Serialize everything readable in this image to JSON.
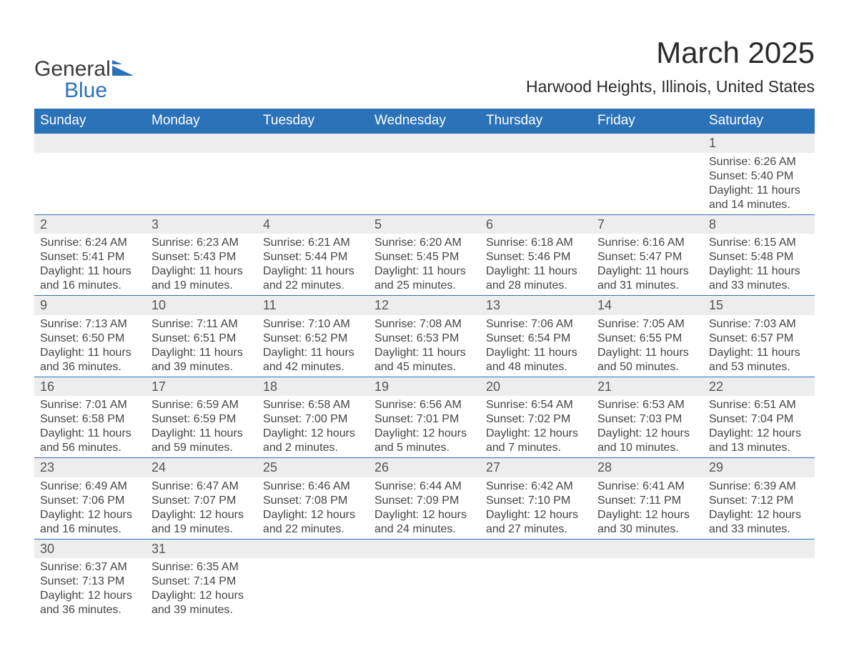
{
  "brand": {
    "name1": "General",
    "name2": "Blue"
  },
  "title": "March 2025",
  "location": "Harwood Heights, Illinois, United States",
  "colors": {
    "header_bg": "#2b72b9",
    "header_fg": "#ffffff",
    "daynum_bg": "#ededed",
    "row_divider": "#2b72b9",
    "text": "#444444",
    "title_text": "#2a2a2a"
  },
  "day_headers": [
    "Sunday",
    "Monday",
    "Tuesday",
    "Wednesday",
    "Thursday",
    "Friday",
    "Saturday"
  ],
  "weeks": [
    [
      null,
      null,
      null,
      null,
      null,
      null,
      {
        "n": "1",
        "sunrise": "Sunrise: 6:26 AM",
        "sunset": "Sunset: 5:40 PM",
        "d1": "Daylight: 11 hours",
        "d2": "and 14 minutes."
      }
    ],
    [
      {
        "n": "2",
        "sunrise": "Sunrise: 6:24 AM",
        "sunset": "Sunset: 5:41 PM",
        "d1": "Daylight: 11 hours",
        "d2": "and 16 minutes."
      },
      {
        "n": "3",
        "sunrise": "Sunrise: 6:23 AM",
        "sunset": "Sunset: 5:43 PM",
        "d1": "Daylight: 11 hours",
        "d2": "and 19 minutes."
      },
      {
        "n": "4",
        "sunrise": "Sunrise: 6:21 AM",
        "sunset": "Sunset: 5:44 PM",
        "d1": "Daylight: 11 hours",
        "d2": "and 22 minutes."
      },
      {
        "n": "5",
        "sunrise": "Sunrise: 6:20 AM",
        "sunset": "Sunset: 5:45 PM",
        "d1": "Daylight: 11 hours",
        "d2": "and 25 minutes."
      },
      {
        "n": "6",
        "sunrise": "Sunrise: 6:18 AM",
        "sunset": "Sunset: 5:46 PM",
        "d1": "Daylight: 11 hours",
        "d2": "and 28 minutes."
      },
      {
        "n": "7",
        "sunrise": "Sunrise: 6:16 AM",
        "sunset": "Sunset: 5:47 PM",
        "d1": "Daylight: 11 hours",
        "d2": "and 31 minutes."
      },
      {
        "n": "8",
        "sunrise": "Sunrise: 6:15 AM",
        "sunset": "Sunset: 5:48 PM",
        "d1": "Daylight: 11 hours",
        "d2": "and 33 minutes."
      }
    ],
    [
      {
        "n": "9",
        "sunrise": "Sunrise: 7:13 AM",
        "sunset": "Sunset: 6:50 PM",
        "d1": "Daylight: 11 hours",
        "d2": "and 36 minutes."
      },
      {
        "n": "10",
        "sunrise": "Sunrise: 7:11 AM",
        "sunset": "Sunset: 6:51 PM",
        "d1": "Daylight: 11 hours",
        "d2": "and 39 minutes."
      },
      {
        "n": "11",
        "sunrise": "Sunrise: 7:10 AM",
        "sunset": "Sunset: 6:52 PM",
        "d1": "Daylight: 11 hours",
        "d2": "and 42 minutes."
      },
      {
        "n": "12",
        "sunrise": "Sunrise: 7:08 AM",
        "sunset": "Sunset: 6:53 PM",
        "d1": "Daylight: 11 hours",
        "d2": "and 45 minutes."
      },
      {
        "n": "13",
        "sunrise": "Sunrise: 7:06 AM",
        "sunset": "Sunset: 6:54 PM",
        "d1": "Daylight: 11 hours",
        "d2": "and 48 minutes."
      },
      {
        "n": "14",
        "sunrise": "Sunrise: 7:05 AM",
        "sunset": "Sunset: 6:55 PM",
        "d1": "Daylight: 11 hours",
        "d2": "and 50 minutes."
      },
      {
        "n": "15",
        "sunrise": "Sunrise: 7:03 AM",
        "sunset": "Sunset: 6:57 PM",
        "d1": "Daylight: 11 hours",
        "d2": "and 53 minutes."
      }
    ],
    [
      {
        "n": "16",
        "sunrise": "Sunrise: 7:01 AM",
        "sunset": "Sunset: 6:58 PM",
        "d1": "Daylight: 11 hours",
        "d2": "and 56 minutes."
      },
      {
        "n": "17",
        "sunrise": "Sunrise: 6:59 AM",
        "sunset": "Sunset: 6:59 PM",
        "d1": "Daylight: 11 hours",
        "d2": "and 59 minutes."
      },
      {
        "n": "18",
        "sunrise": "Sunrise: 6:58 AM",
        "sunset": "Sunset: 7:00 PM",
        "d1": "Daylight: 12 hours",
        "d2": "and 2 minutes."
      },
      {
        "n": "19",
        "sunrise": "Sunrise: 6:56 AM",
        "sunset": "Sunset: 7:01 PM",
        "d1": "Daylight: 12 hours",
        "d2": "and 5 minutes."
      },
      {
        "n": "20",
        "sunrise": "Sunrise: 6:54 AM",
        "sunset": "Sunset: 7:02 PM",
        "d1": "Daylight: 12 hours",
        "d2": "and 7 minutes."
      },
      {
        "n": "21",
        "sunrise": "Sunrise: 6:53 AM",
        "sunset": "Sunset: 7:03 PM",
        "d1": "Daylight: 12 hours",
        "d2": "and 10 minutes."
      },
      {
        "n": "22",
        "sunrise": "Sunrise: 6:51 AM",
        "sunset": "Sunset: 7:04 PM",
        "d1": "Daylight: 12 hours",
        "d2": "and 13 minutes."
      }
    ],
    [
      {
        "n": "23",
        "sunrise": "Sunrise: 6:49 AM",
        "sunset": "Sunset: 7:06 PM",
        "d1": "Daylight: 12 hours",
        "d2": "and 16 minutes."
      },
      {
        "n": "24",
        "sunrise": "Sunrise: 6:47 AM",
        "sunset": "Sunset: 7:07 PM",
        "d1": "Daylight: 12 hours",
        "d2": "and 19 minutes."
      },
      {
        "n": "25",
        "sunrise": "Sunrise: 6:46 AM",
        "sunset": "Sunset: 7:08 PM",
        "d1": "Daylight: 12 hours",
        "d2": "and 22 minutes."
      },
      {
        "n": "26",
        "sunrise": "Sunrise: 6:44 AM",
        "sunset": "Sunset: 7:09 PM",
        "d1": "Daylight: 12 hours",
        "d2": "and 24 minutes."
      },
      {
        "n": "27",
        "sunrise": "Sunrise: 6:42 AM",
        "sunset": "Sunset: 7:10 PM",
        "d1": "Daylight: 12 hours",
        "d2": "and 27 minutes."
      },
      {
        "n": "28",
        "sunrise": "Sunrise: 6:41 AM",
        "sunset": "Sunset: 7:11 PM",
        "d1": "Daylight: 12 hours",
        "d2": "and 30 minutes."
      },
      {
        "n": "29",
        "sunrise": "Sunrise: 6:39 AM",
        "sunset": "Sunset: 7:12 PM",
        "d1": "Daylight: 12 hours",
        "d2": "and 33 minutes."
      }
    ],
    [
      {
        "n": "30",
        "sunrise": "Sunrise: 6:37 AM",
        "sunset": "Sunset: 7:13 PM",
        "d1": "Daylight: 12 hours",
        "d2": "and 36 minutes."
      },
      {
        "n": "31",
        "sunrise": "Sunrise: 6:35 AM",
        "sunset": "Sunset: 7:14 PM",
        "d1": "Daylight: 12 hours",
        "d2": "and 39 minutes."
      },
      null,
      null,
      null,
      null,
      null
    ]
  ]
}
